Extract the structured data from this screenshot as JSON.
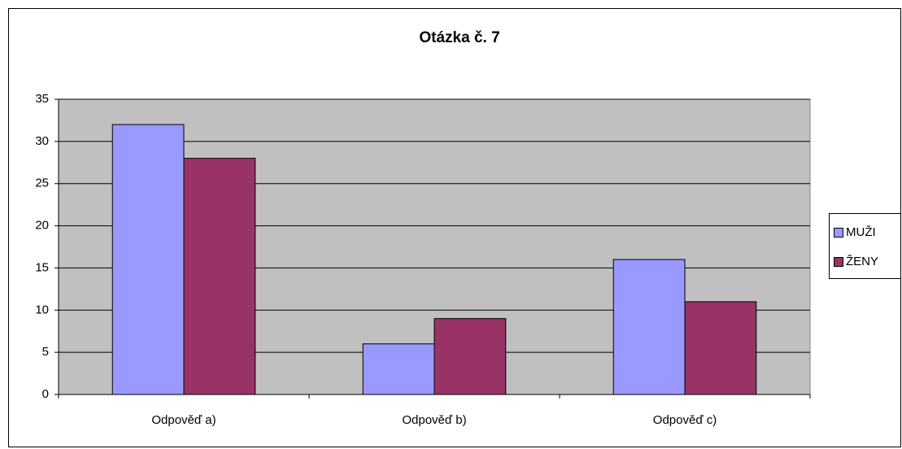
{
  "chart_data": {
    "type": "bar",
    "title": "Otázka č. 7",
    "categories": [
      "Odpověď a)",
      "Odpověď b)",
      "Odpověď c)"
    ],
    "series": [
      {
        "name": "MUŽI",
        "color": "#9999ff",
        "values": [
          32,
          6,
          16
        ]
      },
      {
        "name": "ŽENY",
        "color": "#993366",
        "values": [
          28,
          9,
          11
        ]
      }
    ],
    "ylim": [
      0,
      35
    ],
    "yticks": [
      0,
      5,
      10,
      15,
      20,
      25,
      30,
      35
    ],
    "grid": true,
    "legend": "right"
  }
}
